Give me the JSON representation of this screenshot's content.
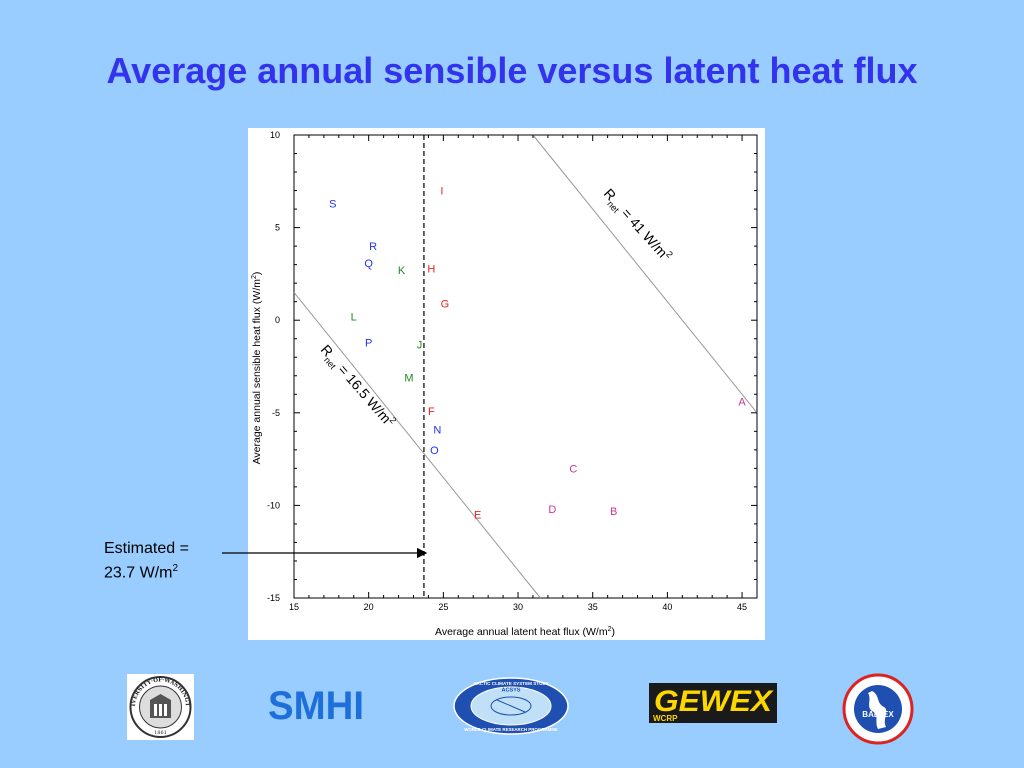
{
  "slide": {
    "title": "Average annual sensible versus latent heat flux"
  },
  "chart_data": {
    "type": "scatter",
    "xlabel": "Average annual latent heat flux (W/m",
    "xlabel_sup": "2",
    "xlabel_end": ")",
    "ylabel": "Average annual sensible heat flux (W/m",
    "ylabel_sup": "2",
    "ylabel_end": ")",
    "xlim": [
      15,
      46
    ],
    "ylim": [
      -15,
      10
    ],
    "xticks": [
      15,
      20,
      25,
      30,
      35,
      40,
      45
    ],
    "yticks": [
      10,
      5,
      0,
      -5,
      -10,
      -15
    ],
    "grid": false,
    "points": [
      {
        "label": "A",
        "x": 45.0,
        "y": -4.4,
        "color": "#cc3399"
      },
      {
        "label": "B",
        "x": 36.4,
        "y": -10.3,
        "color": "#cc3399"
      },
      {
        "label": "C",
        "x": 33.7,
        "y": -8.0,
        "color": "#cc3399"
      },
      {
        "label": "D",
        "x": 32.3,
        "y": -10.2,
        "color": "#cc3399"
      },
      {
        "label": "E",
        "x": 27.3,
        "y": -10.5,
        "color": "#ee2222"
      },
      {
        "label": "F",
        "x": 24.2,
        "y": -4.9,
        "color": "#ee2222"
      },
      {
        "label": "G",
        "x": 25.1,
        "y": 0.9,
        "color": "#ee2222"
      },
      {
        "label": "H",
        "x": 24.2,
        "y": 2.8,
        "color": "#ee2222"
      },
      {
        "label": "I",
        "x": 24.9,
        "y": 7.0,
        "color": "#ee2222"
      },
      {
        "label": "J",
        "x": 23.4,
        "y": -1.3,
        "color": "#228822"
      },
      {
        "label": "K",
        "x": 22.2,
        "y": 2.7,
        "color": "#228822"
      },
      {
        "label": "L",
        "x": 19.0,
        "y": 0.2,
        "color": "#228822"
      },
      {
        "label": "M",
        "x": 22.7,
        "y": -3.1,
        "color": "#228822"
      },
      {
        "label": "N",
        "x": 24.6,
        "y": -5.9,
        "color": "#2233ee"
      },
      {
        "label": "O",
        "x": 24.4,
        "y": -7.0,
        "color": "#2233ee"
      },
      {
        "label": "P",
        "x": 20.0,
        "y": -1.2,
        "color": "#2233ee"
      },
      {
        "label": "Q",
        "x": 20.0,
        "y": 3.1,
        "color": "#2233ee"
      },
      {
        "label": "R",
        "x": 20.3,
        "y": 4.0,
        "color": "#2233ee"
      },
      {
        "label": "S",
        "x": 17.6,
        "y": 6.3,
        "color": "#2233ee"
      }
    ],
    "lines": [
      {
        "name": "net-16.5",
        "from": [
          15,
          1.5
        ],
        "to": [
          31.5,
          -15
        ],
        "color": "#999999"
      },
      {
        "name": "net-41",
        "from": [
          31.0,
          10
        ],
        "to": [
          46,
          -5
        ],
        "color": "#999999"
      }
    ],
    "estimate_line_x": 23.7,
    "annotations": [
      {
        "key": "net_low",
        "R": "R",
        "sub": "net",
        "eq": " = ",
        "val": "16.5 W/m",
        "sup": "2"
      },
      {
        "key": "net_high",
        "R": "R",
        "sub": "net",
        "eq": " = ",
        "val": "41 W/m",
        "sup": "2"
      }
    ]
  },
  "estimate": {
    "line1": "Estimated =",
    "value": "23.7 W/m",
    "sup": "2"
  },
  "logos": {
    "uw_text": "UNIVERSITY·OF·WASHINGTON",
    "uw_year": "1861",
    "smhi": "SMHI",
    "acsys_top": "ARCTIC CLIMATE SYSTEM STUDY",
    "acsys_mid": "ACSYS",
    "acsys_bottom": "WORLD CLIMATE RESEARCH PROGRAMME",
    "gewex": "GEWEX",
    "wcrp": "WCRP",
    "baltex": "BALTEX",
    "colors": {
      "smhi": "#1e6fd9",
      "gewex": "#ffd700",
      "acsys_ring": "#1f4fb0",
      "baltex_ring": "#dd2222"
    }
  }
}
